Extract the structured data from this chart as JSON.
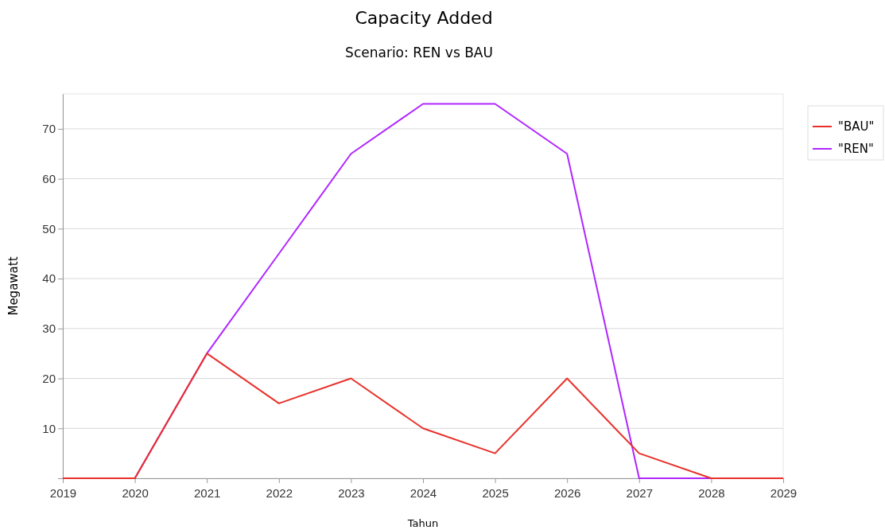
{
  "chart_data": {
    "type": "line",
    "title": "Capacity Added",
    "subtitle": "Scenario: REN vs BAU",
    "xlabel": "Tahun",
    "ylabel": "Megawatt",
    "x": [
      2019,
      2020,
      2021,
      2022,
      2023,
      2024,
      2025,
      2026,
      2027,
      2028,
      2029
    ],
    "series": [
      {
        "name": "\"BAU\"",
        "color": "#e8312a",
        "values": [
          0,
          0,
          25,
          15,
          20,
          10,
          5,
          20,
          5,
          0,
          0
        ]
      },
      {
        "name": "\"REN\"",
        "color": "#b026ff",
        "values": [
          0,
          0,
          25,
          45,
          65,
          75,
          75,
          65,
          0,
          0,
          0
        ]
      }
    ],
    "xlim": [
      2019,
      2029
    ],
    "xticks": [
      2019,
      2020,
      2021,
      2022,
      2023,
      2024,
      2025,
      2026,
      2027,
      2028,
      2029
    ],
    "ylim": [
      0,
      77
    ],
    "yticks": [
      {
        "value": 0,
        "label": null
      },
      10,
      20,
      30,
      40,
      50,
      60,
      70
    ],
    "grid": "y",
    "legend": "top right",
    "marker": "none",
    "line_style": "solid"
  }
}
